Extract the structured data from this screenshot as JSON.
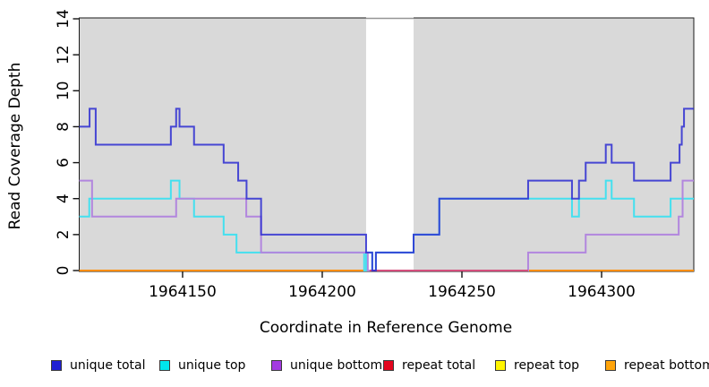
{
  "chart_data": {
    "type": "line",
    "subtype": "step-coverage-plot",
    "title": "",
    "xlabel": "Coordinate in Reference Genome",
    "ylabel": "Read Coverage Depth",
    "x_domain": [
      1964113,
      1964333
    ],
    "y_domain": [
      0,
      14
    ],
    "x_ticks": [
      {
        "value": 1964150,
        "label": "1964150"
      },
      {
        "value": 1964200,
        "label": "1964200"
      },
      {
        "value": 1964250,
        "label": "1964250"
      },
      {
        "value": 1964300,
        "label": "1964300"
      }
    ],
    "y_ticks": [
      {
        "value": 0,
        "label": "0"
      },
      {
        "value": 2,
        "label": "2"
      },
      {
        "value": 4,
        "label": "4"
      },
      {
        "value": 6,
        "label": "6"
      },
      {
        "value": 8,
        "label": "8"
      },
      {
        "value": 10,
        "label": "10"
      },
      {
        "value": 12,
        "label": "12"
      },
      {
        "value": 14,
        "label": "14"
      }
    ],
    "plot_bg_color": "#d9d9d9",
    "gap_band": {
      "x0": 1964215.7,
      "x1": 1964232.7,
      "color": "#ffffff",
      "top_edge_color": "#969696"
    },
    "grid": false,
    "legend_position": "bottom",
    "draw_order": [
      "repeat top",
      "repeat bottom",
      "unique top",
      "unique bottom",
      "repeat total",
      "unique total"
    ],
    "series": [
      {
        "name": "unique total",
        "color": "#2b2bd1",
        "opacity": 0.85,
        "steps": [
          [
            1964113,
            8
          ],
          [
            1964116.7,
            9
          ],
          [
            1964118.9,
            7
          ],
          [
            1964145.8,
            8
          ],
          [
            1964147.7,
            9
          ],
          [
            1964148.9,
            8
          ],
          [
            1964154.1,
            7
          ],
          [
            1964164.7,
            6
          ],
          [
            1964169.9,
            5
          ],
          [
            1964172.9,
            4
          ],
          [
            1964178.1,
            2
          ],
          [
            1964215.7,
            1
          ],
          [
            1964217.9,
            0
          ],
          [
            1964219.2,
            1
          ],
          [
            1964232.7,
            2
          ],
          [
            1964241.9,
            4
          ],
          [
            1964273.7,
            5
          ],
          [
            1964289.4,
            4
          ],
          [
            1964291.9,
            5
          ],
          [
            1964294.3,
            6
          ],
          [
            1964301.5,
            7
          ],
          [
            1964303.6,
            6
          ],
          [
            1964311.6,
            5
          ],
          [
            1964324.7,
            6
          ],
          [
            1964327.9,
            7
          ],
          [
            1964328.7,
            8
          ],
          [
            1964329.5,
            9
          ]
        ]
      },
      {
        "name": "unique top",
        "color": "#44e0ef",
        "opacity": 1,
        "steps": [
          [
            1964113,
            3
          ],
          [
            1964116.6,
            4
          ],
          [
            1964145.8,
            5
          ],
          [
            1964148.9,
            4
          ],
          [
            1964154.1,
            3
          ],
          [
            1964164.7,
            2
          ],
          [
            1964169.3,
            1
          ],
          [
            1964215.0,
            0
          ],
          [
            1964215.7,
            1
          ],
          [
            1964217.9,
            0
          ],
          [
            1964219.2,
            1
          ],
          [
            1964232.7,
            2
          ],
          [
            1964241.9,
            4
          ],
          [
            1964289.4,
            3
          ],
          [
            1964291.9,
            4
          ],
          [
            1964301.5,
            5
          ],
          [
            1964303.6,
            4
          ],
          [
            1964311.6,
            3
          ],
          [
            1964324.7,
            4
          ]
        ]
      },
      {
        "name": "unique bottom",
        "color": "#b286de",
        "opacity": 1,
        "steps": [
          [
            1964113,
            5
          ],
          [
            1964117.6,
            3
          ],
          [
            1964147.7,
            4
          ],
          [
            1964172.8,
            3
          ],
          [
            1964178.1,
            1
          ],
          [
            1964216.3,
            0
          ],
          [
            1964273.7,
            1
          ],
          [
            1964294.3,
            2
          ],
          [
            1964327.6,
            3
          ],
          [
            1964329.0,
            5
          ]
        ]
      },
      {
        "name": "repeat total",
        "color": "#d44e7c",
        "opacity": 1,
        "steps": [
          [
            1964217,
            0
          ]
        ],
        "x_end": 1964273.7
      },
      {
        "name": "repeat top",
        "color": "#ffee00",
        "opacity": 1,
        "steps": [
          [
            1964113,
            0
          ]
        ]
      },
      {
        "name": "repeat bottom",
        "color": "#ff8c00",
        "opacity": 1,
        "steps": [
          [
            1964113,
            0
          ]
        ]
      }
    ]
  },
  "legend": {
    "items": [
      {
        "label": "unique total",
        "color": "#1f1fd2"
      },
      {
        "label": "unique top",
        "color": "#00e5ee"
      },
      {
        "label": "unique bottom",
        "color": "#a33ae1"
      },
      {
        "label": "repeat total",
        "color": "#e3051d"
      },
      {
        "label": "repeat top",
        "color": "#fff500"
      },
      {
        "label": "repeat bottom",
        "color": "#ffa40a"
      }
    ]
  }
}
